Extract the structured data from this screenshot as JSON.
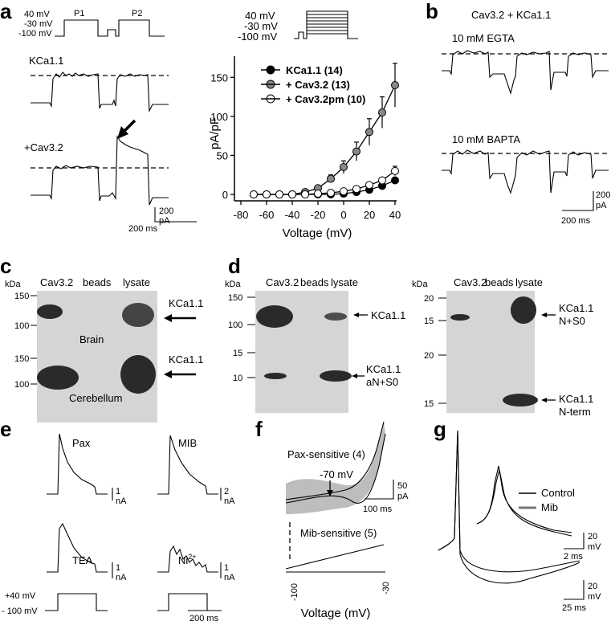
{
  "panels": {
    "a": {
      "letter": "a",
      "protocol_left": {
        "v1": "40 mV",
        "v2": "-30 mV",
        "v3": "-100 mV",
        "p1": "P1",
        "p2": "P2"
      },
      "protocol_mid": {
        "v1": "40 mV",
        "v2": "-30 mV",
        "v3": "-100 mV"
      },
      "trace_labels": {
        "top": "KCa1.1",
        "bottom": "+Cav3.2"
      },
      "scale": {
        "y": "200",
        "y_unit": "pA",
        "x": "200 ms"
      }
    },
    "b": {
      "letter": "b",
      "title": "Cav3.2 + KCa1.1",
      "trace_labels": {
        "top": "10 mM EGTA",
        "bottom": "10 mM BAPTA"
      },
      "scale": {
        "y": "200",
        "y_unit": "pA",
        "x": "200 ms"
      }
    },
    "c": {
      "letter": "c",
      "kda": "kDa",
      "lanes": [
        "Cav3.2",
        "beads",
        "lysate"
      ],
      "markers": [
        "150",
        "100"
      ],
      "blot_labels": [
        "Brain",
        "Cerebellum"
      ],
      "band_label": "KCa1.1"
    },
    "d": {
      "letter": "d",
      "kda": "kDa",
      "lanes": [
        "Cav3.2",
        "beads",
        "lysate"
      ],
      "left_markers_top": [
        "150",
        "100"
      ],
      "left_markers_bottom": [
        "15",
        "10"
      ],
      "right_markers_top": [
        "20",
        "15"
      ],
      "right_markers_bottom": [
        "20",
        "15"
      ],
      "labels": {
        "lt": "KCa1.1",
        "lb1": "KCa1.1",
        "lb2": "aN+S0",
        "rt1": "KCa1.1",
        "rt2": "N+S0",
        "rb1": "KCa1.1",
        "rb2": "N-term"
      }
    },
    "e": {
      "letter": "e",
      "traces": [
        "Pax",
        "MIB",
        "TEA",
        "Ni"
      ],
      "ni_sup": "2+",
      "scales": [
        "1",
        "2",
        "1",
        "1"
      ],
      "unit": "nA",
      "protocol": {
        "v1": "+40 mV",
        "v2": "- 100 mV"
      },
      "time": "200 ms"
    },
    "f": {
      "letter": "f",
      "label_top": "Pax-sensitive (4)",
      "arrow_label": "-70 mV",
      "label_bottom": "Mib-sensitive (5)",
      "scale": {
        "y": "50",
        "y_unit": "pA",
        "x": "100 ms"
      },
      "xticks": [
        "-100",
        "-30"
      ],
      "xlabel": "Voltage (mV)"
    },
    "g": {
      "letter": "g",
      "legend": [
        "Control",
        "Mib"
      ],
      "scale_inset": {
        "y": "20",
        "y_unit": "mV",
        "x": "2 ms"
      },
      "scale_main": {
        "y": "20",
        "y_unit": "mV",
        "x": "25 ms"
      }
    }
  },
  "chart_data": {
    "type": "line",
    "xlabel": "Voltage (mV)",
    "ylabel": "pA/pF",
    "xlim": [
      -80,
      40
    ],
    "ylim": [
      0,
      175
    ],
    "xticks": [
      -80,
      -60,
      -40,
      -20,
      0,
      20,
      40
    ],
    "yticks": [
      0,
      50,
      100,
      150
    ],
    "legend_position": "top-right",
    "series": [
      {
        "name": "KCa1.1 (14)",
        "color": "#000000",
        "x": [
          -70,
          -60,
          -50,
          -40,
          -30,
          -20,
          -10,
          0,
          10,
          20,
          30,
          40
        ],
        "y": [
          0,
          0,
          0,
          0,
          0,
          0,
          0,
          1,
          3,
          6,
          11,
          18
        ],
        "err": [
          0,
          0,
          0,
          0,
          0,
          0,
          0,
          1,
          1,
          2,
          2,
          3
        ]
      },
      {
        "name": "+ Cav3.2 (13)",
        "color": "#888888",
        "x": [
          -70,
          -60,
          -50,
          -40,
          -30,
          -20,
          -10,
          0,
          10,
          20,
          30,
          40
        ],
        "y": [
          0,
          0,
          0,
          0,
          3,
          8,
          20,
          35,
          55,
          80,
          105,
          140
        ],
        "err": [
          0,
          0,
          0,
          0,
          1,
          3,
          5,
          8,
          12,
          17,
          20,
          28
        ]
      },
      {
        "name": "+ Cav3.2pm (10)",
        "color": "#ffffff",
        "x": [
          -70,
          -60,
          -50,
          -40,
          -30,
          -20,
          -10,
          0,
          10,
          20,
          30,
          40
        ],
        "y": [
          0,
          0,
          0,
          0,
          0,
          1,
          2,
          4,
          7,
          12,
          18,
          30
        ],
        "err": [
          0,
          0,
          0,
          0,
          0,
          0,
          1,
          1,
          2,
          2,
          3,
          6
        ]
      }
    ]
  }
}
